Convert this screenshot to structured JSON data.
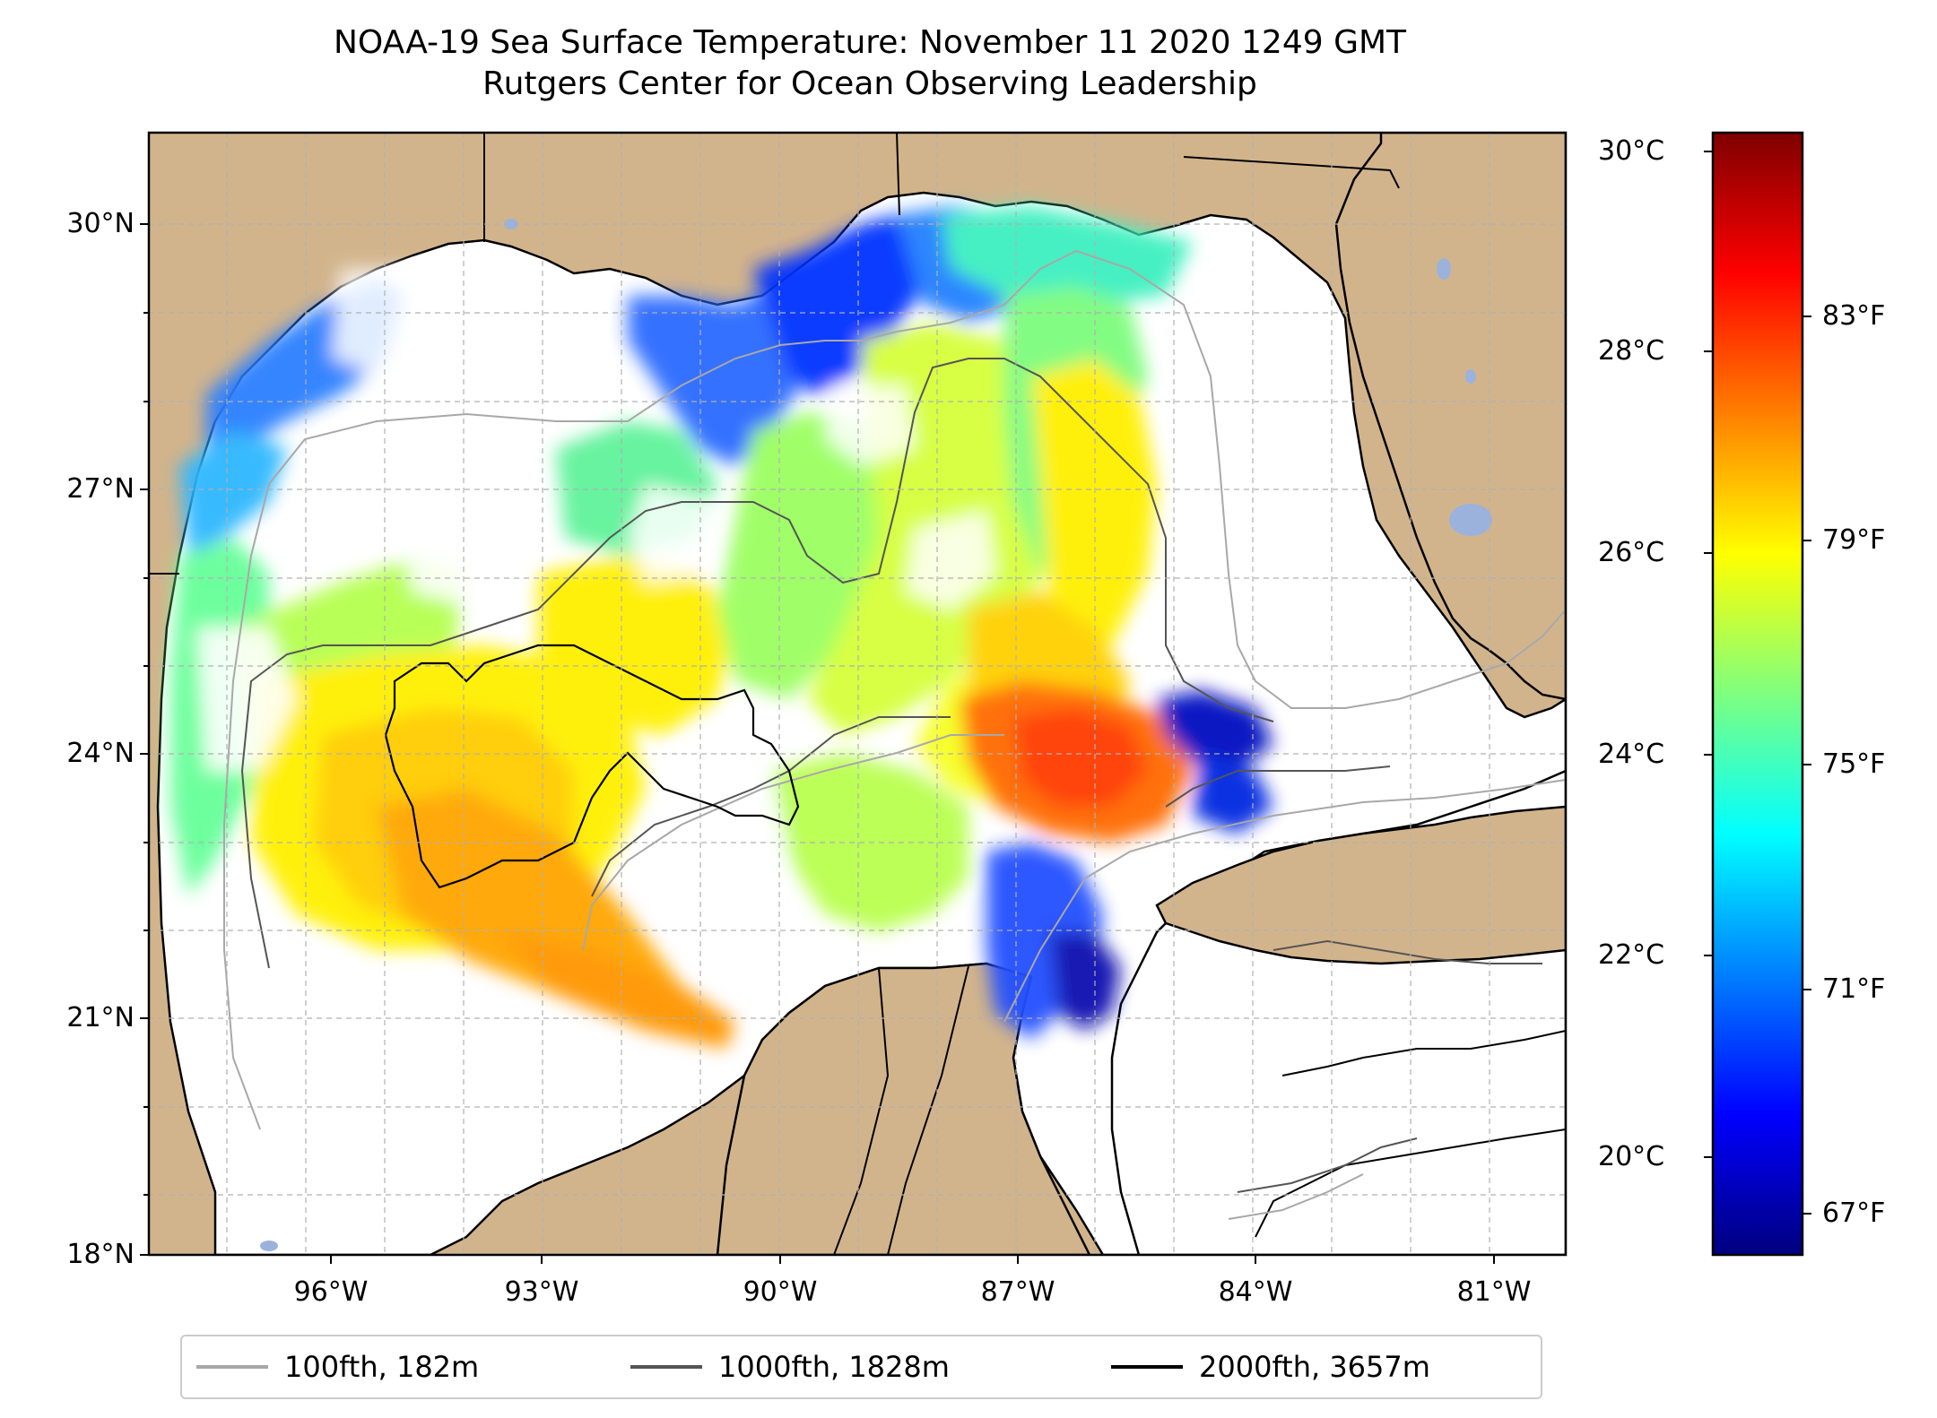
{
  "title": {
    "line1": "NOAA-19 Sea Surface Temperature: November 11 2020 1249 GMT",
    "line2": "Rutgers Center for Ocean Observing Leadership"
  },
  "axes": {
    "lat_labels": [
      "30°N",
      "27°N",
      "24°N",
      "21°N",
      "18°N"
    ],
    "lon_labels": [
      "96°W",
      "93°W",
      "90°W",
      "87°W",
      "84°W",
      "81°W"
    ]
  },
  "colorbar": {
    "celsius_labels": [
      "30°C",
      "28°C",
      "26°C",
      "24°C",
      "22°C",
      "20°C"
    ],
    "fahrenheit_labels": [
      "83°F",
      "79°F",
      "75°F",
      "71°F",
      "67°F"
    ],
    "colors": [
      "#00007f",
      "#0000ff",
      "#007fff",
      "#00ffff",
      "#7fff7f",
      "#ffff00",
      "#ff7f00",
      "#ff0000",
      "#7f0000"
    ]
  },
  "legend": [
    {
      "label": "100fth, 182m",
      "color": "#a8a8a8"
    },
    {
      "label": "1000fth, 1828m",
      "color": "#555555"
    },
    {
      "label": "2000fth, 3657m",
      "color": "#000000"
    }
  ],
  "map_colors": {
    "land": "#d2b48c",
    "lakes": "#9bb2dc",
    "no_data": "#ffffff",
    "grid": "#b0b0b0"
  }
}
